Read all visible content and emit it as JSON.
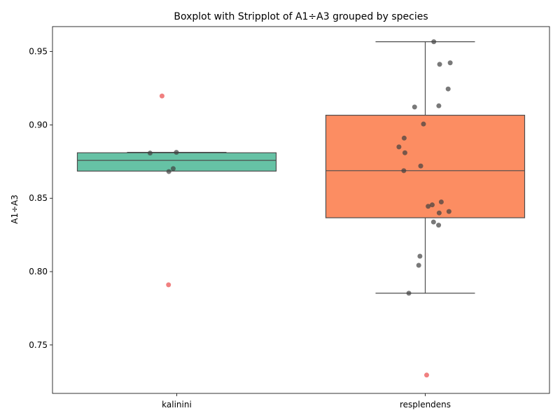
{
  "chart_data": {
    "type": "boxplot",
    "title": "Boxplot with Stripplot of A1÷A3 grouped by species",
    "xlabel": "",
    "ylabel": "A1÷A3",
    "ylim": [
      0.717,
      0.967
    ],
    "yticks": [
      "0.75",
      "0.80",
      "0.85",
      "0.90",
      "0.95"
    ],
    "categories": [
      "kalinini",
      "resplendens"
    ],
    "grid": false,
    "colors": {
      "kalinini_box": "#66c2a5",
      "resplendens_box": "#fc8d62",
      "box_edge": "#4d4d4d",
      "strip_point": "#404040",
      "outlier": "#f08080"
    },
    "boxes": [
      {
        "category": "kalinini",
        "whisker_low": 0.8685,
        "q1": 0.8685,
        "median": 0.8758,
        "q3": 0.881,
        "whisker_high": 0.8813,
        "outliers": [
          0.9197,
          0.791
        ],
        "points": [
          0.8813,
          0.8808,
          0.8702,
          0.8682
        ]
      },
      {
        "category": "resplendens",
        "whisker_low": 0.7853,
        "q1": 0.8367,
        "median": 0.8688,
        "q3": 0.9066,
        "whisker_high": 0.9567,
        "outliers": [
          0.7295
        ],
        "points": [
          0.9567,
          0.9423,
          0.9413,
          0.9245,
          0.913,
          0.9122,
          0.9006,
          0.891,
          0.885,
          0.881,
          0.872,
          0.8688,
          0.8475,
          0.8455,
          0.8445,
          0.841,
          0.84,
          0.8338,
          0.8317,
          0.8105,
          0.8043,
          0.7853
        ]
      }
    ]
  }
}
